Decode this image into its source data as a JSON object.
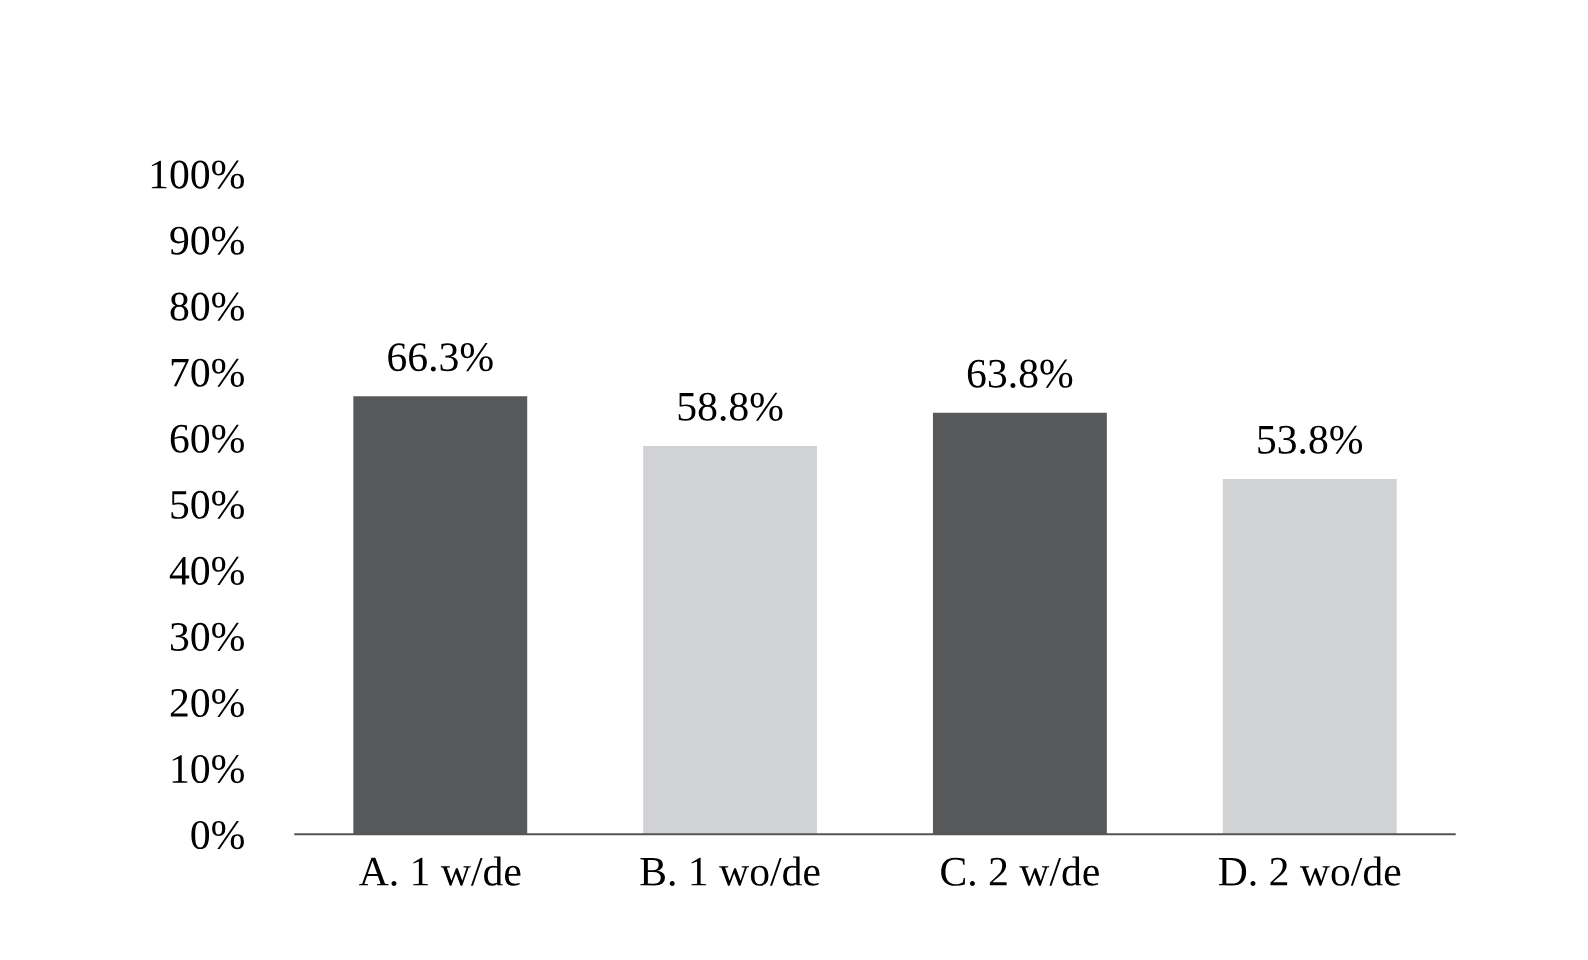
{
  "chart_data": {
    "type": "bar",
    "categories": [
      "A. 1 w/de",
      "B. 1 wo/de",
      "C. 2 w/de",
      "D. 2 wo/de"
    ],
    "values": [
      66.3,
      58.8,
      63.8,
      53.8
    ],
    "colors": [
      "#58595b",
      "#d1d2d4",
      "#58595b",
      "#d1d2d4"
    ],
    "value_labels": [
      "66.3%",
      "58.8%",
      "63.8%",
      "53.8%"
    ],
    "ylim": [
      0,
      100
    ],
    "yticks": [
      {
        "value": 0,
        "label": "0%"
      },
      {
        "value": 10,
        "label": "10%"
      },
      {
        "value": 20,
        "label": "20%"
      },
      {
        "value": 30,
        "label": "30%"
      },
      {
        "value": 40,
        "label": "40%"
      },
      {
        "value": 50,
        "label": "50%"
      },
      {
        "value": 60,
        "label": "60%"
      },
      {
        "value": 70,
        "label": "70%"
      },
      {
        "value": 80,
        "label": "80%"
      },
      {
        "value": 90,
        "label": "90%"
      },
      {
        "value": 100,
        "label": "100%"
      }
    ],
    "grid": false,
    "legend": false
  }
}
